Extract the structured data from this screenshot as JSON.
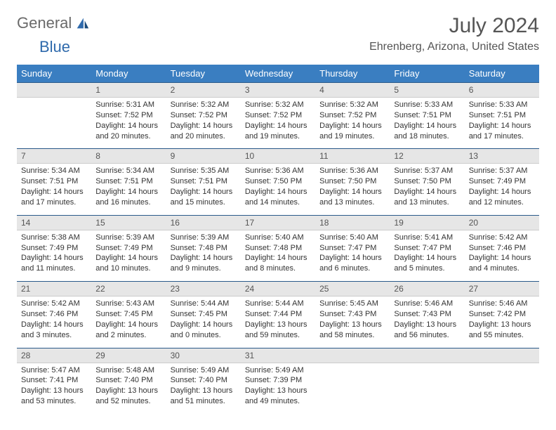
{
  "brand": {
    "part1": "General",
    "part2": "Blue"
  },
  "title": "July 2024",
  "location": "Ehrenberg, Arizona, United States",
  "colors": {
    "header_bg": "#3a7ec1",
    "header_text": "#ffffff",
    "daynum_bg": "#e6e6e6",
    "row_divider": "#2a5a8a",
    "text": "#333333",
    "title_color": "#555555",
    "logo_general": "#6a6a6a",
    "logo_blue": "#2f6aac"
  },
  "typography": {
    "title_fontsize": 30,
    "location_fontsize": 16,
    "dow_fontsize": 13,
    "daynum_fontsize": 12,
    "cell_fontsize": 11
  },
  "days_of_week": [
    "Sunday",
    "Monday",
    "Tuesday",
    "Wednesday",
    "Thursday",
    "Friday",
    "Saturday"
  ],
  "weeks": [
    {
      "nums": [
        "",
        "1",
        "2",
        "3",
        "4",
        "5",
        "6"
      ],
      "cells": [
        {
          "lines": []
        },
        {
          "lines": [
            "Sunrise: 5:31 AM",
            "Sunset: 7:52 PM",
            "Daylight: 14 hours and 20 minutes."
          ]
        },
        {
          "lines": [
            "Sunrise: 5:32 AM",
            "Sunset: 7:52 PM",
            "Daylight: 14 hours and 20 minutes."
          ]
        },
        {
          "lines": [
            "Sunrise: 5:32 AM",
            "Sunset: 7:52 PM",
            "Daylight: 14 hours and 19 minutes."
          ]
        },
        {
          "lines": [
            "Sunrise: 5:32 AM",
            "Sunset: 7:52 PM",
            "Daylight: 14 hours and 19 minutes."
          ]
        },
        {
          "lines": [
            "Sunrise: 5:33 AM",
            "Sunset: 7:51 PM",
            "Daylight: 14 hours and 18 minutes."
          ]
        },
        {
          "lines": [
            "Sunrise: 5:33 AM",
            "Sunset: 7:51 PM",
            "Daylight: 14 hours and 17 minutes."
          ]
        }
      ]
    },
    {
      "nums": [
        "7",
        "8",
        "9",
        "10",
        "11",
        "12",
        "13"
      ],
      "cells": [
        {
          "lines": [
            "Sunrise: 5:34 AM",
            "Sunset: 7:51 PM",
            "Daylight: 14 hours and 17 minutes."
          ]
        },
        {
          "lines": [
            "Sunrise: 5:34 AM",
            "Sunset: 7:51 PM",
            "Daylight: 14 hours and 16 minutes."
          ]
        },
        {
          "lines": [
            "Sunrise: 5:35 AM",
            "Sunset: 7:51 PM",
            "Daylight: 14 hours and 15 minutes."
          ]
        },
        {
          "lines": [
            "Sunrise: 5:36 AM",
            "Sunset: 7:50 PM",
            "Daylight: 14 hours and 14 minutes."
          ]
        },
        {
          "lines": [
            "Sunrise: 5:36 AM",
            "Sunset: 7:50 PM",
            "Daylight: 14 hours and 13 minutes."
          ]
        },
        {
          "lines": [
            "Sunrise: 5:37 AM",
            "Sunset: 7:50 PM",
            "Daylight: 14 hours and 13 minutes."
          ]
        },
        {
          "lines": [
            "Sunrise: 5:37 AM",
            "Sunset: 7:49 PM",
            "Daylight: 14 hours and 12 minutes."
          ]
        }
      ]
    },
    {
      "nums": [
        "14",
        "15",
        "16",
        "17",
        "18",
        "19",
        "20"
      ],
      "cells": [
        {
          "lines": [
            "Sunrise: 5:38 AM",
            "Sunset: 7:49 PM",
            "Daylight: 14 hours and 11 minutes."
          ]
        },
        {
          "lines": [
            "Sunrise: 5:39 AM",
            "Sunset: 7:49 PM",
            "Daylight: 14 hours and 10 minutes."
          ]
        },
        {
          "lines": [
            "Sunrise: 5:39 AM",
            "Sunset: 7:48 PM",
            "Daylight: 14 hours and 9 minutes."
          ]
        },
        {
          "lines": [
            "Sunrise: 5:40 AM",
            "Sunset: 7:48 PM",
            "Daylight: 14 hours and 8 minutes."
          ]
        },
        {
          "lines": [
            "Sunrise: 5:40 AM",
            "Sunset: 7:47 PM",
            "Daylight: 14 hours and 6 minutes."
          ]
        },
        {
          "lines": [
            "Sunrise: 5:41 AM",
            "Sunset: 7:47 PM",
            "Daylight: 14 hours and 5 minutes."
          ]
        },
        {
          "lines": [
            "Sunrise: 5:42 AM",
            "Sunset: 7:46 PM",
            "Daylight: 14 hours and 4 minutes."
          ]
        }
      ]
    },
    {
      "nums": [
        "21",
        "22",
        "23",
        "24",
        "25",
        "26",
        "27"
      ],
      "cells": [
        {
          "lines": [
            "Sunrise: 5:42 AM",
            "Sunset: 7:46 PM",
            "Daylight: 14 hours and 3 minutes."
          ]
        },
        {
          "lines": [
            "Sunrise: 5:43 AM",
            "Sunset: 7:45 PM",
            "Daylight: 14 hours and 2 minutes."
          ]
        },
        {
          "lines": [
            "Sunrise: 5:44 AM",
            "Sunset: 7:45 PM",
            "Daylight: 14 hours and 0 minutes."
          ]
        },
        {
          "lines": [
            "Sunrise: 5:44 AM",
            "Sunset: 7:44 PM",
            "Daylight: 13 hours and 59 minutes."
          ]
        },
        {
          "lines": [
            "Sunrise: 5:45 AM",
            "Sunset: 7:43 PM",
            "Daylight: 13 hours and 58 minutes."
          ]
        },
        {
          "lines": [
            "Sunrise: 5:46 AM",
            "Sunset: 7:43 PM",
            "Daylight: 13 hours and 56 minutes."
          ]
        },
        {
          "lines": [
            "Sunrise: 5:46 AM",
            "Sunset: 7:42 PM",
            "Daylight: 13 hours and 55 minutes."
          ]
        }
      ]
    },
    {
      "nums": [
        "28",
        "29",
        "30",
        "31",
        "",
        "",
        ""
      ],
      "cells": [
        {
          "lines": [
            "Sunrise: 5:47 AM",
            "Sunset: 7:41 PM",
            "Daylight: 13 hours and 53 minutes."
          ]
        },
        {
          "lines": [
            "Sunrise: 5:48 AM",
            "Sunset: 7:40 PM",
            "Daylight: 13 hours and 52 minutes."
          ]
        },
        {
          "lines": [
            "Sunrise: 5:49 AM",
            "Sunset: 7:40 PM",
            "Daylight: 13 hours and 51 minutes."
          ]
        },
        {
          "lines": [
            "Sunrise: 5:49 AM",
            "Sunset: 7:39 PM",
            "Daylight: 13 hours and 49 minutes."
          ]
        },
        {
          "lines": []
        },
        {
          "lines": []
        },
        {
          "lines": []
        }
      ]
    }
  ]
}
